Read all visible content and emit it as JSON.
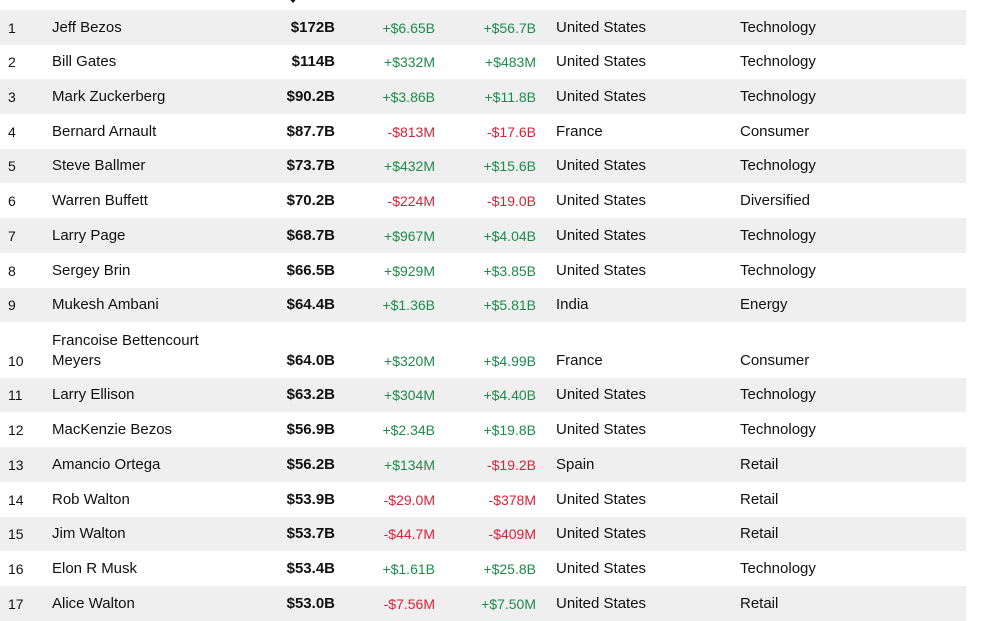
{
  "colors": {
    "positive": "#1f8a4c",
    "negative": "#d6223a",
    "shaded_row": "#efefef",
    "text": "#111111"
  },
  "sort_indicator": "sort-descending-icon",
  "rows": [
    {
      "rank": "1",
      "name": "Jeff Bezos",
      "net_worth": "$172B",
      "last_change": "+$6.65B",
      "ytd_change": "+$56.7B",
      "country": "United States",
      "industry": "Technology"
    },
    {
      "rank": "2",
      "name": "Bill Gates",
      "net_worth": "$114B",
      "last_change": "+$332M",
      "ytd_change": "+$483M",
      "country": "United States",
      "industry": "Technology"
    },
    {
      "rank": "3",
      "name": "Mark Zuckerberg",
      "net_worth": "$90.2B",
      "last_change": "+$3.86B",
      "ytd_change": "+$11.8B",
      "country": "United States",
      "industry": "Technology"
    },
    {
      "rank": "4",
      "name": "Bernard Arnault",
      "net_worth": "$87.7B",
      "last_change": "-$813M",
      "ytd_change": "-$17.6B",
      "country": "France",
      "industry": "Consumer"
    },
    {
      "rank": "5",
      "name": "Steve Ballmer",
      "net_worth": "$73.7B",
      "last_change": "+$432M",
      "ytd_change": "+$15.6B",
      "country": "United States",
      "industry": "Technology"
    },
    {
      "rank": "6",
      "name": "Warren Buffett",
      "net_worth": "$70.2B",
      "last_change": "-$224M",
      "ytd_change": "-$19.0B",
      "country": "United States",
      "industry": "Diversified"
    },
    {
      "rank": "7",
      "name": "Larry Page",
      "net_worth": "$68.7B",
      "last_change": "+$967M",
      "ytd_change": "+$4.04B",
      "country": "United States",
      "industry": "Technology"
    },
    {
      "rank": "8",
      "name": "Sergey Brin",
      "net_worth": "$66.5B",
      "last_change": "+$929M",
      "ytd_change": "+$3.85B",
      "country": "United States",
      "industry": "Technology"
    },
    {
      "rank": "9",
      "name": "Mukesh Ambani",
      "net_worth": "$64.4B",
      "last_change": "+$1.36B",
      "ytd_change": "+$5.81B",
      "country": "India",
      "industry": "Energy"
    },
    {
      "rank": "10",
      "name": "Francoise Bettencourt Meyers",
      "net_worth": "$64.0B",
      "last_change": "+$320M",
      "ytd_change": "+$4.99B",
      "country": "France",
      "industry": "Consumer"
    },
    {
      "rank": "11",
      "name": "Larry Ellison",
      "net_worth": "$63.2B",
      "last_change": "+$304M",
      "ytd_change": "+$4.40B",
      "country": "United States",
      "industry": "Technology"
    },
    {
      "rank": "12",
      "name": "MacKenzie Bezos",
      "net_worth": "$56.9B",
      "last_change": "+$2.34B",
      "ytd_change": "+$19.8B",
      "country": "United States",
      "industry": "Technology"
    },
    {
      "rank": "13",
      "name": "Amancio Ortega",
      "net_worth": "$56.2B",
      "last_change": "+$134M",
      "ytd_change": "-$19.2B",
      "country": "Spain",
      "industry": "Retail"
    },
    {
      "rank": "14",
      "name": "Rob Walton",
      "net_worth": "$53.9B",
      "last_change": "-$29.0M",
      "ytd_change": "-$378M",
      "country": "United States",
      "industry": "Retail"
    },
    {
      "rank": "15",
      "name": "Jim Walton",
      "net_worth": "$53.7B",
      "last_change": "-$44.7M",
      "ytd_change": "-$409M",
      "country": "United States",
      "industry": "Retail"
    },
    {
      "rank": "16",
      "name": "Elon R Musk",
      "net_worth": "$53.4B",
      "last_change": "+$1.61B",
      "ytd_change": "+$25.8B",
      "country": "United States",
      "industry": "Technology"
    },
    {
      "rank": "17",
      "name": "Alice Walton",
      "net_worth": "$53.0B",
      "last_change": "-$7.56M",
      "ytd_change": "+$7.50M",
      "country": "United States",
      "industry": "Retail"
    }
  ]
}
